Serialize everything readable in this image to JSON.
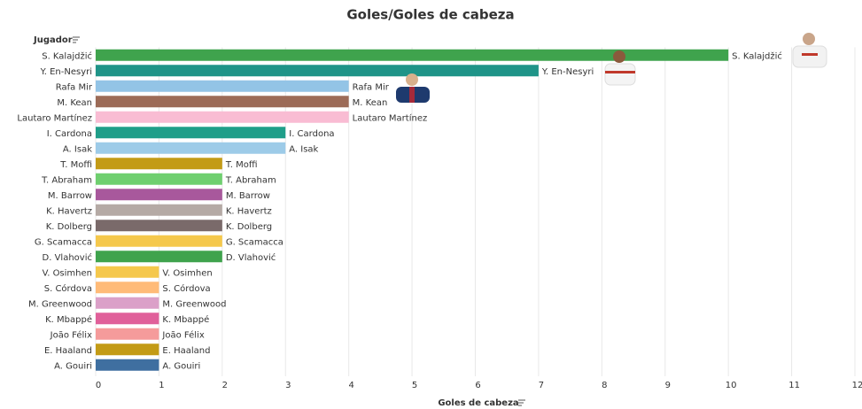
{
  "chart_data": {
    "type": "bar",
    "orientation": "horizontal",
    "title": "Goles/Goles de cabeza",
    "y_label": "Jugador",
    "x_label": "Goles de cabeza",
    "categories": [
      "S. Kalajdžić",
      "Y. En-Nesyri",
      "Rafa Mir",
      "M. Kean",
      "Lautaro Martínez",
      "I. Cardona",
      "A. Isak",
      "T. Moffi",
      "T. Abraham",
      "M. Barrow",
      "K. Havertz",
      "K. Dolberg",
      "G. Scamacca",
      "D. Vlahović",
      "V. Osimhen",
      "S. Córdova",
      "M. Greenwood",
      "K. Mbappé",
      "João Félix",
      "E. Haaland",
      "A. Gouiri"
    ],
    "values": [
      10,
      7,
      4,
      4,
      4,
      3,
      3,
      2,
      2,
      2,
      2,
      2,
      2,
      2,
      1,
      1,
      1,
      1,
      1,
      1,
      1
    ],
    "colors": [
      "#3fa34d",
      "#1f9488",
      "#93c4e6",
      "#9c6b57",
      "#f9bcd3",
      "#1f9e89",
      "#9dcbe8",
      "#c39b16",
      "#6fcf6f",
      "#a8589c",
      "#b5aaa5",
      "#7a6a6a",
      "#f5c84c",
      "#3fa34d",
      "#f5c84c",
      "#ffbb78",
      "#dba0c8",
      "#e0609a",
      "#f59b9b",
      "#c39b16",
      "#3f6fa0"
    ],
    "xlim": [
      0,
      12
    ],
    "xticks": [
      0,
      1,
      2,
      3,
      4,
      5,
      6,
      7,
      8,
      9,
      10,
      11,
      12
    ],
    "grid": true
  }
}
